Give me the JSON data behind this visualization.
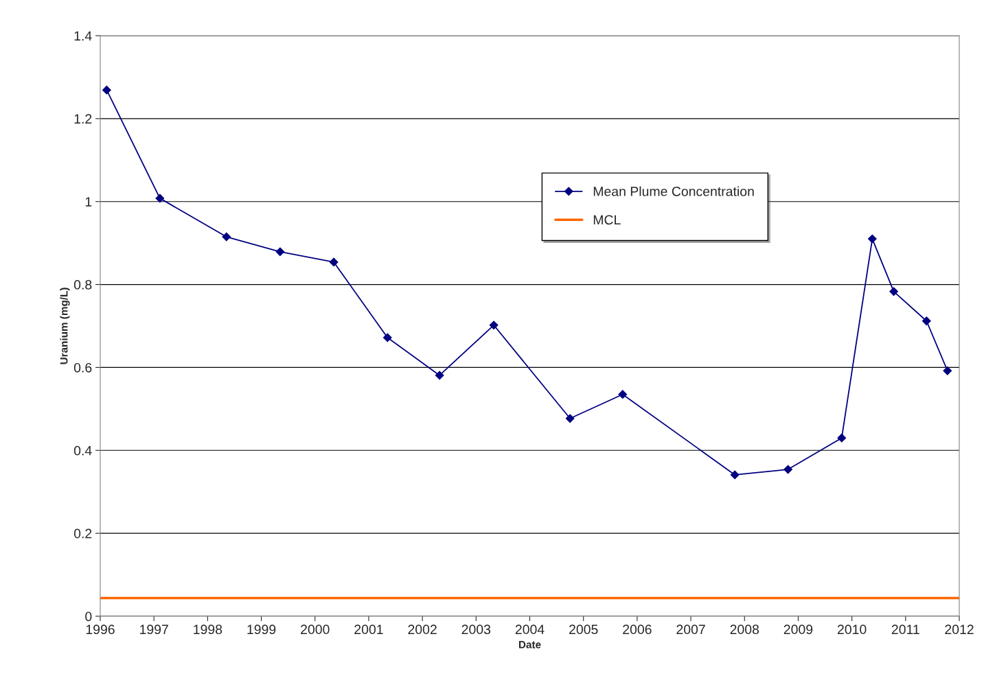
{
  "chart_data": {
    "type": "line",
    "xlabel": "Date",
    "ylabel": "Uranium (mg/L)",
    "xlim": [
      1996,
      2012
    ],
    "xticks": [
      1996,
      1997,
      1998,
      1999,
      2000,
      2001,
      2002,
      2003,
      2004,
      2005,
      2006,
      2007,
      2008,
      2009,
      2010,
      2011,
      2012
    ],
    "ylim": [
      0,
      1.4
    ],
    "yticks": [
      0,
      0.2,
      0.4,
      0.6,
      0.8,
      1,
      1.2,
      1.4
    ],
    "grid": "y",
    "legend": "top right",
    "series": [
      {
        "name": "Mean Plume Concentration",
        "color": "#000080",
        "marker": "diamond",
        "x": [
          1996.12,
          1997.11,
          1998.35,
          1999.35,
          2000.35,
          2001.35,
          2002.32,
          2003.33,
          2004.75,
          2005.73,
          2007.82,
          2008.81,
          2009.81,
          2010.38,
          2010.78,
          2011.39,
          2011.78
        ],
        "values": [
          1.269,
          1.008,
          0.915,
          0.879,
          0.854,
          0.672,
          0.581,
          0.702,
          0.477,
          0.535,
          0.341,
          0.354,
          0.43,
          0.91,
          0.783,
          0.712,
          0.592
        ]
      },
      {
        "name": "MCL",
        "color": "#ff6600",
        "marker": "none",
        "x": [
          1996,
          2012
        ],
        "values": [
          0.044,
          0.044
        ]
      }
    ]
  }
}
